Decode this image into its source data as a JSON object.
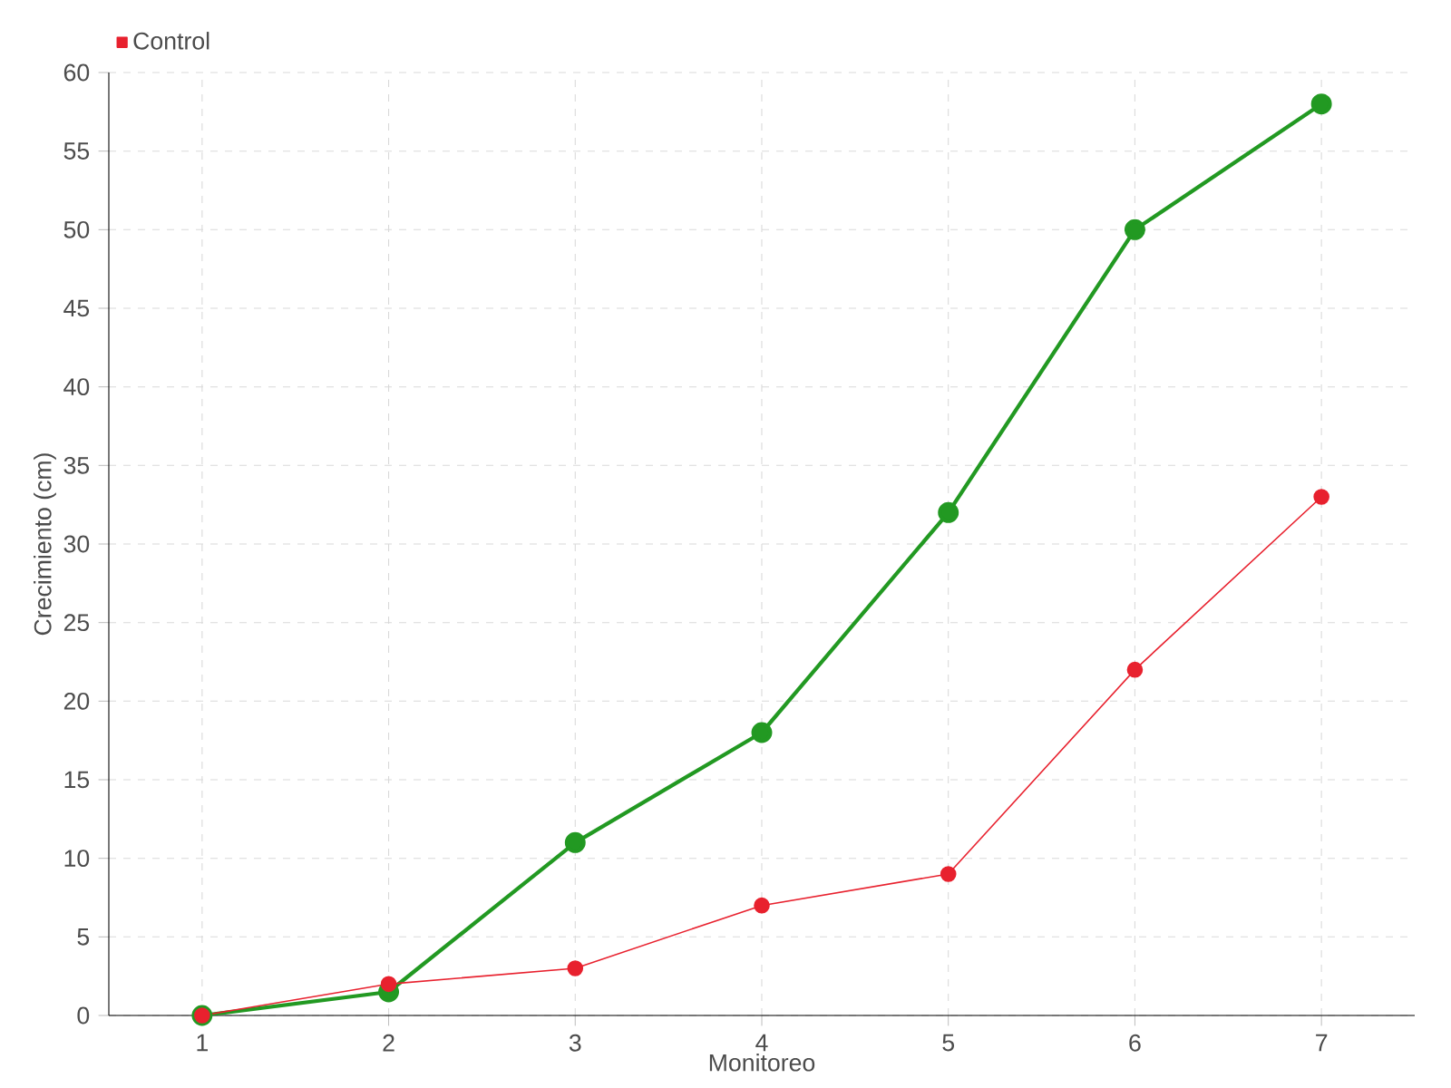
{
  "chart_data": {
    "type": "line",
    "xlabel": "Monitoreo",
    "ylabel": "Crecimiento (cm)",
    "categories": [
      "1",
      "2",
      "3",
      "4",
      "5",
      "6",
      "7"
    ],
    "series": [
      {
        "color": "#229922",
        "values": [
          0,
          1.5,
          11,
          18,
          32,
          50,
          58
        ]
      },
      {
        "name": "Control",
        "color": "#e8212e",
        "values": [
          0,
          2,
          3,
          7,
          9,
          22,
          33
        ]
      }
    ],
    "ylim": [
      0,
      60
    ],
    "yticks": [
      0,
      5,
      10,
      15,
      20,
      25,
      30,
      35,
      40,
      45,
      50,
      55,
      60
    ],
    "grid": true,
    "legend": "top left",
    "marker": "circle",
    "line_style": "solid"
  }
}
